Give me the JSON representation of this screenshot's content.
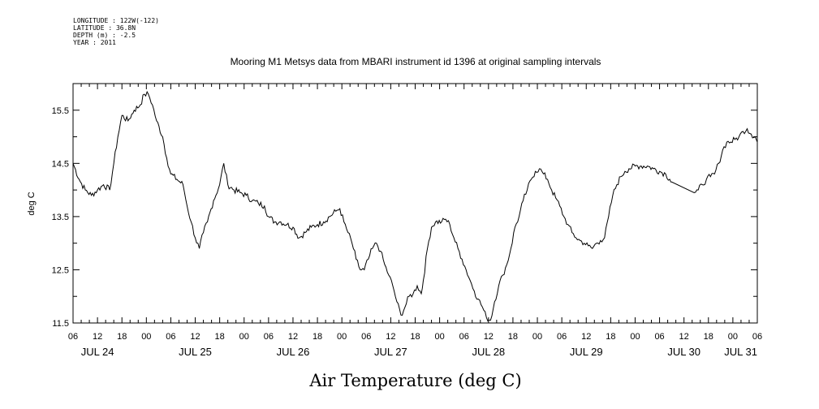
{
  "header": {
    "longitude": "LONGITUDE : 122W(-122)",
    "latitude": "LATITUDE : 36.8N",
    "depth": "DEPTH (m) : -2.5",
    "year": "YEAR : 2011"
  },
  "chart_data": {
    "type": "line",
    "title": "Mooring M1 Metsys data from MBARI instrument id 1396 at original sampling intervals",
    "xlabel": "Air Temperature (deg C)",
    "ylabel": "deg C",
    "grid": false,
    "xlim": [
      "JUL 24 06:00",
      "JUL 31 06:00"
    ],
    "ylim": [
      11.5,
      16.0
    ],
    "y_ticks": [
      "11.5",
      "12.5",
      "13.5",
      "14.5",
      "15.5"
    ],
    "x_hour_labels": [
      "06",
      "12",
      "18",
      "00",
      "06",
      "12",
      "18",
      "00",
      "06",
      "12",
      "18",
      "00",
      "06",
      "12",
      "18",
      "00",
      "06",
      "12",
      "18",
      "00",
      "06",
      "12",
      "18",
      "00",
      "06",
      "12",
      "18",
      "00",
      "06"
    ],
    "x_day_labels": [
      "JUL 24",
      "JUL 25",
      "JUL 26",
      "JUL 27",
      "JUL 28",
      "JUL 29",
      "JUL 30",
      "JUL 31"
    ],
    "series": [
      {
        "color": "#000000",
        "points": [
          [
            "JUL 24 06:00",
            14.5
          ],
          [
            "JUL 24 07:30",
            14.2
          ],
          [
            "JUL 24 09:00",
            14.0
          ],
          [
            "JUL 24 10:30",
            13.9
          ],
          [
            "JUL 24 12:00",
            14.0
          ],
          [
            "JUL 24 13:30",
            14.1
          ],
          [
            "JUL 24 15:00",
            14.0
          ],
          [
            "JUL 24 16:00",
            14.5
          ],
          [
            "JUL 24 17:00",
            15.0
          ],
          [
            "JUL 24 18:00",
            15.4
          ],
          [
            "JUL 24 19:30",
            15.3
          ],
          [
            "JUL 24 21:00",
            15.5
          ],
          [
            "JUL 24 22:30",
            15.6
          ],
          [
            "JUL 24 23:30",
            15.8
          ],
          [
            "JUL 25 00:30",
            15.8
          ],
          [
            "JUL 25 01:30",
            15.6
          ],
          [
            "JUL 25 02:30",
            15.3
          ],
          [
            "JUL 25 04:00",
            15.0
          ],
          [
            "JUL 25 05:00",
            14.6
          ],
          [
            "JUL 25 06:00",
            14.3
          ],
          [
            "JUL 25 07:30",
            14.2
          ],
          [
            "JUL 25 09:00",
            14.1
          ],
          [
            "JUL 25 10:00",
            13.7
          ],
          [
            "JUL 25 11:00",
            13.4
          ],
          [
            "JUL 25 12:00",
            13.1
          ],
          [
            "JUL 25 13:00",
            12.9
          ],
          [
            "JUL 25 14:00",
            13.2
          ],
          [
            "JUL 25 15:00",
            13.4
          ],
          [
            "JUL 25 16:30",
            13.8
          ],
          [
            "JUL 25 18:00",
            14.1
          ],
          [
            "JUL 25 19:00",
            14.5
          ],
          [
            "JUL 25 20:00",
            14.1
          ],
          [
            "JUL 25 21:30",
            14.0
          ],
          [
            "JUL 25 23:00",
            13.95
          ],
          [
            "JUL 26 00:30",
            13.9
          ],
          [
            "JUL 26 02:00",
            13.8
          ],
          [
            "JUL 26 03:30",
            13.75
          ],
          [
            "JUL 26 05:00",
            13.7
          ],
          [
            "JUL 26 06:00",
            13.5
          ],
          [
            "JUL 26 07:30",
            13.4
          ],
          [
            "JUL 26 09:00",
            13.4
          ],
          [
            "JUL 26 10:30",
            13.35
          ],
          [
            "JUL 26 12:00",
            13.3
          ],
          [
            "JUL 26 13:30",
            13.1
          ],
          [
            "JUL 26 15:00",
            13.2
          ],
          [
            "JUL 26 16:30",
            13.3
          ],
          [
            "JUL 26 18:00",
            13.35
          ],
          [
            "JUL 26 19:30",
            13.4
          ],
          [
            "JUL 26 21:00",
            13.5
          ],
          [
            "JUL 26 22:30",
            13.6
          ],
          [
            "JUL 26 23:30",
            13.65
          ],
          [
            "JUL 27 00:30",
            13.4
          ],
          [
            "JUL 27 01:30",
            13.2
          ],
          [
            "JUL 27 02:30",
            13.0
          ],
          [
            "JUL 27 03:30",
            12.7
          ],
          [
            "JUL 27 04:30",
            12.5
          ],
          [
            "JUL 27 05:30",
            12.5
          ],
          [
            "JUL 27 06:30",
            12.7
          ],
          [
            "JUL 27 07:30",
            12.9
          ],
          [
            "JUL 27 08:30",
            13.0
          ],
          [
            "JUL 27 09:30",
            12.85
          ],
          [
            "JUL 27 10:30",
            12.6
          ],
          [
            "JUL 27 11:30",
            12.4
          ],
          [
            "JUL 27 12:30",
            12.2
          ],
          [
            "JUL 27 13:30",
            11.9
          ],
          [
            "JUL 27 14:30",
            11.65
          ],
          [
            "JUL 27 15:30",
            11.8
          ],
          [
            "JUL 27 16:30",
            12.0
          ],
          [
            "JUL 27 17:30",
            12.05
          ],
          [
            "JUL 27 18:30",
            12.2
          ],
          [
            "JUL 27 19:30",
            12.05
          ],
          [
            "JUL 27 20:00",
            12.3
          ],
          [
            "JUL 27 21:00",
            12.9
          ],
          [
            "JUL 27 22:00",
            13.3
          ],
          [
            "JUL 27 23:00",
            13.4
          ],
          [
            "JUL 28 00:30",
            13.4
          ],
          [
            "JUL 28 01:30",
            13.45
          ],
          [
            "JUL 28 02:30",
            13.35
          ],
          [
            "JUL 28 03:30",
            13.1
          ],
          [
            "JUL 28 04:30",
            12.9
          ],
          [
            "JUL 28 05:30",
            12.7
          ],
          [
            "JUL 28 06:30",
            12.5
          ],
          [
            "JUL 28 07:30",
            12.3
          ],
          [
            "JUL 28 08:30",
            12.1
          ],
          [
            "JUL 28 09:30",
            11.95
          ],
          [
            "JUL 28 10:30",
            11.8
          ],
          [
            "JUL 28 11:30",
            11.6
          ],
          [
            "JUL 28 12:30",
            11.55
          ],
          [
            "JUL 28 13:30",
            11.9
          ],
          [
            "JUL 28 14:30",
            12.2
          ],
          [
            "JUL 28 15:30",
            12.4
          ],
          [
            "JUL 28 16:30",
            12.6
          ],
          [
            "JUL 28 17:30",
            12.9
          ],
          [
            "JUL 28 18:30",
            13.3
          ],
          [
            "JUL 28 19:30",
            13.5
          ],
          [
            "JUL 28 20:30",
            13.8
          ],
          [
            "JUL 28 21:30",
            14.0
          ],
          [
            "JUL 28 22:30",
            14.2
          ],
          [
            "JUL 28 23:30",
            14.35
          ],
          [
            "JUL 29 00:30",
            14.4
          ],
          [
            "JUL 29 01:30",
            14.3
          ],
          [
            "JUL 29 02:30",
            14.2
          ],
          [
            "JUL 29 03:30",
            14.0
          ],
          [
            "JUL 29 04:30",
            13.85
          ],
          [
            "JUL 29 05:30",
            13.7
          ],
          [
            "JUL 29 06:30",
            13.5
          ],
          [
            "JUL 29 07:30",
            13.35
          ],
          [
            "JUL 29 08:30",
            13.2
          ],
          [
            "JUL 29 09:30",
            13.1
          ],
          [
            "JUL 29 10:30",
            13.05
          ],
          [
            "JUL 29 11:30",
            13.0
          ],
          [
            "JUL 29 12:30",
            12.95
          ],
          [
            "JUL 29 13:30",
            12.9
          ],
          [
            "JUL 29 14:30",
            13.0
          ],
          [
            "JUL 29 15:30",
            13.05
          ],
          [
            "JUL 29 16:30",
            13.1
          ],
          [
            "JUL 29 17:30",
            13.5
          ],
          [
            "JUL 29 18:30",
            13.9
          ],
          [
            "JUL 29 19:30",
            14.1
          ],
          [
            "JUL 29 20:30",
            14.25
          ],
          [
            "JUL 29 21:30",
            14.35
          ],
          [
            "JUL 29 22:30",
            14.4
          ],
          [
            "JUL 30 00:00",
            14.45
          ],
          [
            "JUL 30 01:30",
            14.45
          ],
          [
            "JUL 30 03:00",
            14.45
          ],
          [
            "JUL 30 04:30",
            14.4
          ],
          [
            "JUL 30 06:00",
            14.35
          ],
          [
            "JUL 30 07:30",
            14.3
          ],
          [
            "JUL 30 08:30",
            14.2
          ],
          [
            "JUL 30 09:00",
            14.15
          ],
          [
            "JUL 30 14:30",
            13.95
          ],
          [
            "JUL 30 15:30",
            14.0
          ],
          [
            "JUL 30 16:30",
            14.1
          ],
          [
            "JUL 30 17:30",
            14.2
          ],
          [
            "JUL 30 18:30",
            14.25
          ],
          [
            "JUL 30 19:30",
            14.3
          ],
          [
            "JUL 30 20:30",
            14.5
          ],
          [
            "JUL 30 21:30",
            14.75
          ],
          [
            "JUL 30 22:30",
            14.9
          ],
          [
            "JUL 30 23:30",
            14.9
          ],
          [
            "JUL 31 00:30",
            14.95
          ],
          [
            "JUL 31 01:30",
            15.0
          ],
          [
            "JUL 31 02:30",
            15.1
          ],
          [
            "JUL 31 03:30",
            15.15
          ],
          [
            "JUL 31 04:30",
            15.05
          ],
          [
            "JUL 31 05:30",
            15.0
          ],
          [
            "JUL 31 06:00",
            14.9
          ]
        ]
      }
    ]
  }
}
